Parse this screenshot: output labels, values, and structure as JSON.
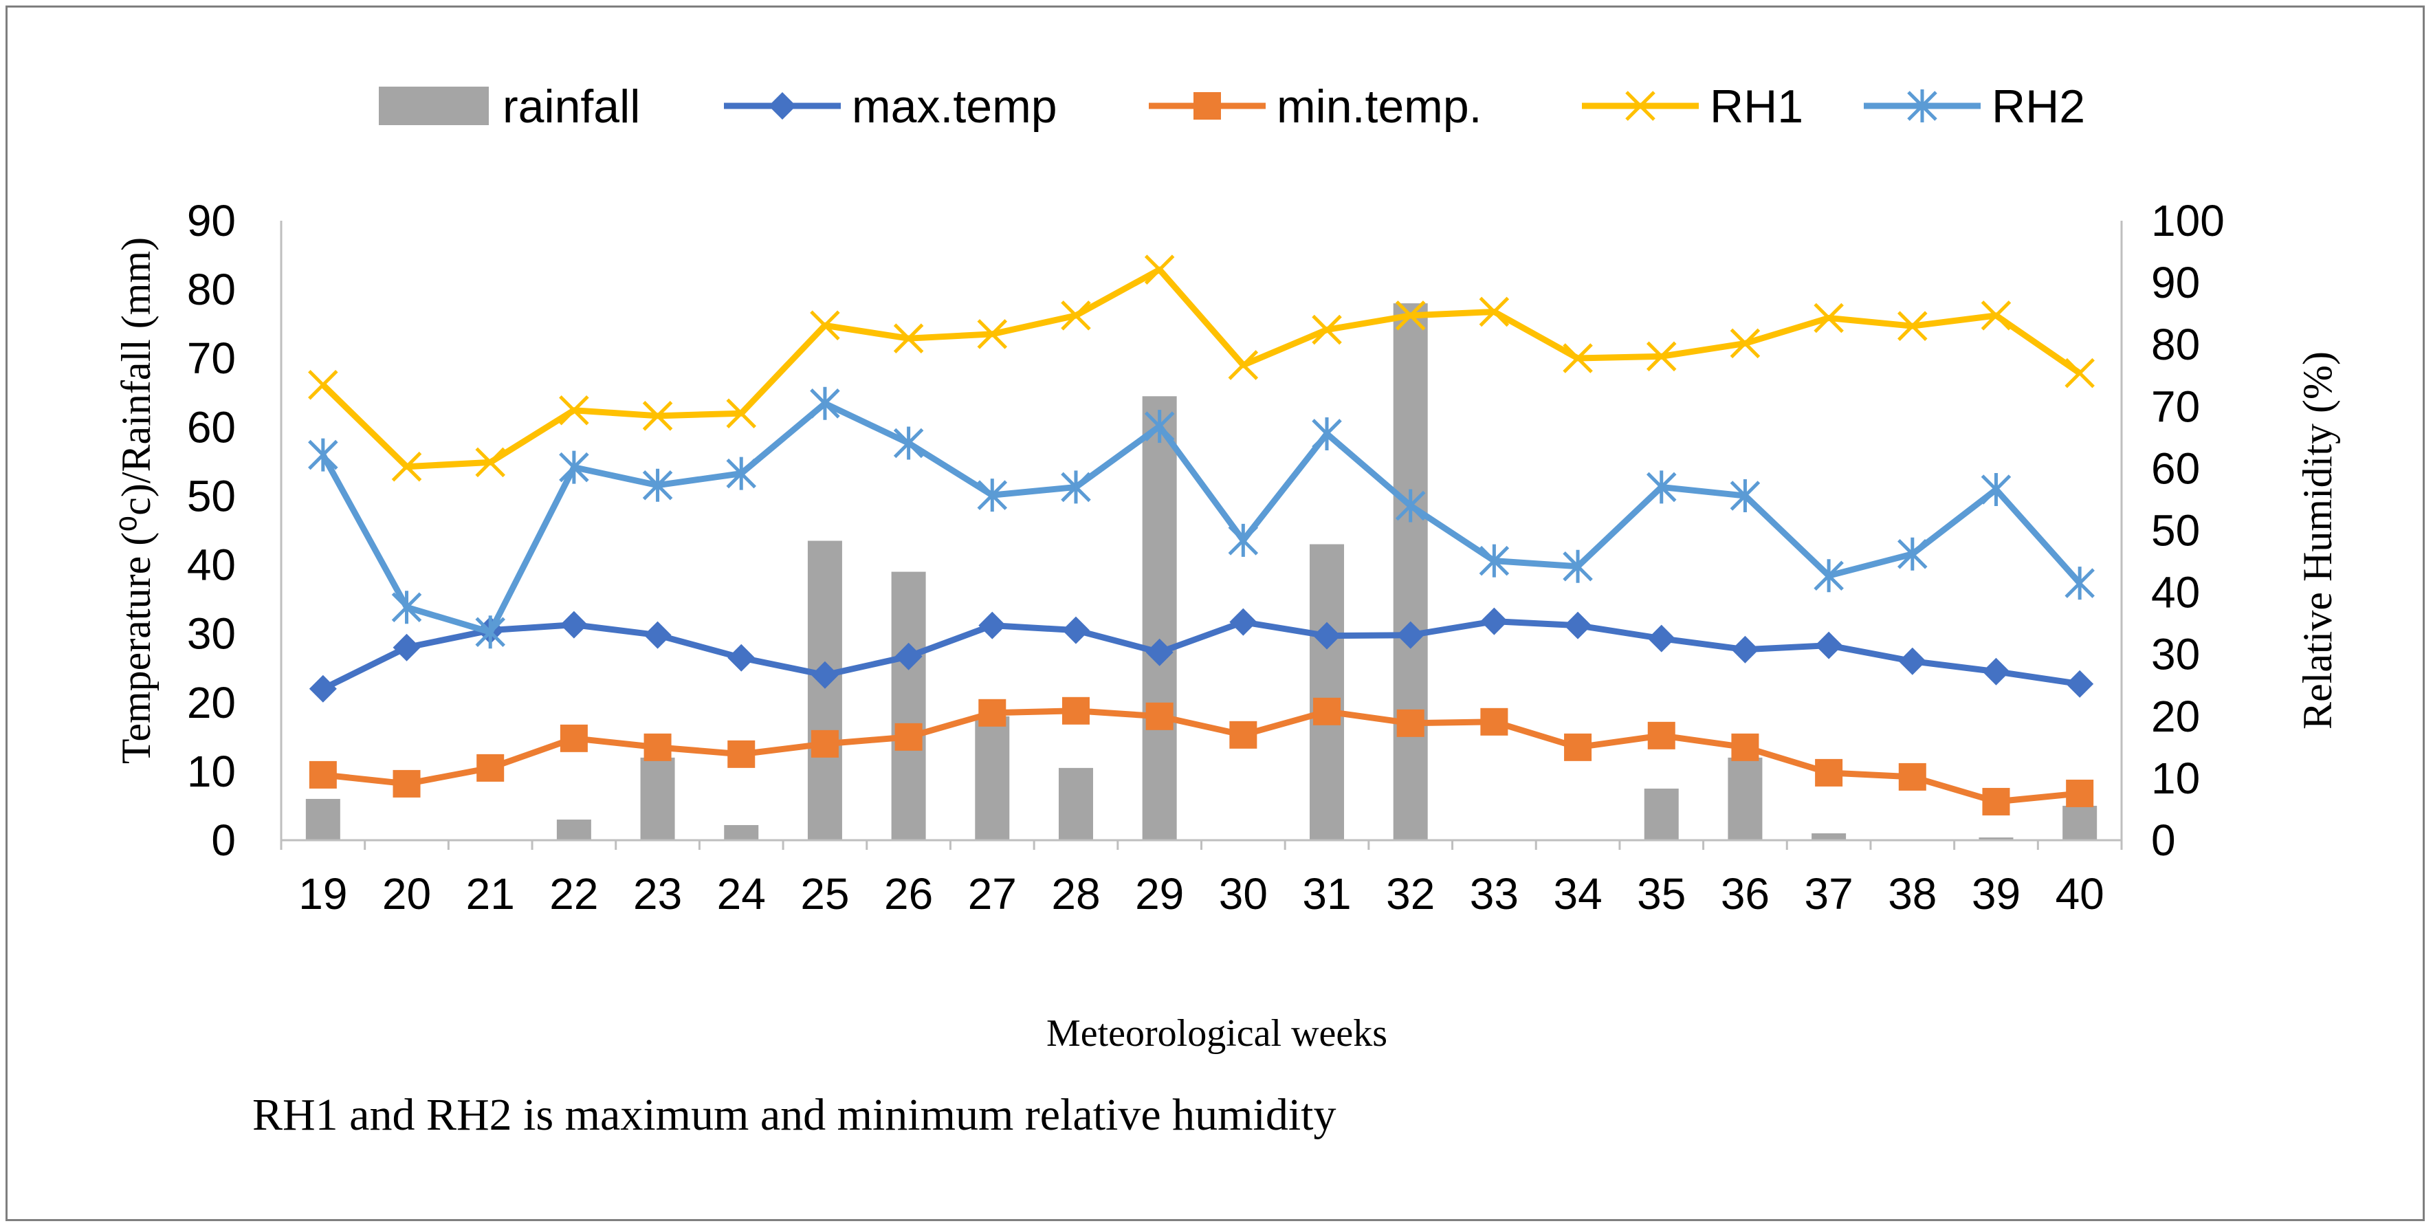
{
  "chart_data": {
    "type": "bar+line",
    "x": [
      "19",
      "20",
      "21",
      "22",
      "23",
      "24",
      "25",
      "26",
      "27",
      "28",
      "29",
      "30",
      "31",
      "32",
      "33",
      "34",
      "35",
      "36",
      "37",
      "38",
      "39",
      "40"
    ],
    "xlabel": "Meteorological weeks",
    "ylabel_left": "Temperature (⁰c)/Rainfall (mm)",
    "ylabel_right": "Relative Humidity (%)",
    "ylim_left": [
      0,
      90
    ],
    "ylim_right": [
      0,
      100
    ],
    "yticks_left": [
      "0",
      "10",
      "20",
      "30",
      "40",
      "50",
      "60",
      "70",
      "80",
      "90"
    ],
    "yticks_right": [
      "0",
      "10",
      "20",
      "30",
      "40",
      "50",
      "60",
      "70",
      "80",
      "90",
      "100"
    ],
    "note": "RH1 and RH2 is maximum and minimum relative humidity",
    "series": [
      {
        "name": "rainfall",
        "kind": "bar",
        "axis": "left",
        "color": "#a5a5a5",
        "values": [
          6,
          0,
          0,
          3,
          12,
          2.2,
          43.5,
          39,
          18,
          10.5,
          64.5,
          0,
          43,
          78,
          0,
          0,
          7.5,
          12,
          1,
          0,
          0.4,
          5
        ]
      },
      {
        "name": "max.temp",
        "kind": "line",
        "marker": "diamond",
        "axis": "left",
        "color": "#4472c4",
        "values": [
          22,
          28,
          30.5,
          31.3,
          29.8,
          26.5,
          24,
          26.7,
          31.2,
          30.5,
          27.3,
          31.7,
          29.7,
          29.8,
          31.8,
          31.2,
          29.3,
          27.7,
          28.3,
          26,
          24.5,
          22.7
        ]
      },
      {
        "name": "min.temp.",
        "kind": "line",
        "marker": "square",
        "axis": "left",
        "color": "#ed7d31",
        "values": [
          9.5,
          8.2,
          10.5,
          14.8,
          13.5,
          12.5,
          14,
          15,
          18.5,
          18.8,
          18,
          15.3,
          18.7,
          17,
          17.2,
          13.5,
          15.2,
          13.5,
          9.8,
          9.2,
          5.6,
          6.8
        ]
      },
      {
        "name": "RH1",
        "kind": "line",
        "marker": "x",
        "axis": "right",
        "color": "#ffc000",
        "values": [
          73.5,
          60.3,
          61,
          69.4,
          68.5,
          68.9,
          83.1,
          81,
          81.7,
          84.7,
          92.1,
          76.7,
          82.4,
          84.7,
          85.3,
          77.8,
          78.1,
          80.2,
          84.3,
          83,
          84.7,
          75.4
        ]
      },
      {
        "name": "RH2",
        "kind": "line",
        "marker": "asterisk",
        "axis": "right",
        "color": "#5b9bd5",
        "values": [
          62.2,
          37.6,
          33.6,
          60.2,
          57.3,
          59.2,
          70.5,
          64.1,
          55.7,
          57,
          66.8,
          48.4,
          65.6,
          54,
          45.1,
          44.2,
          57,
          55.6,
          42.7,
          46.2,
          56.6,
          41.5
        ]
      }
    ]
  }
}
